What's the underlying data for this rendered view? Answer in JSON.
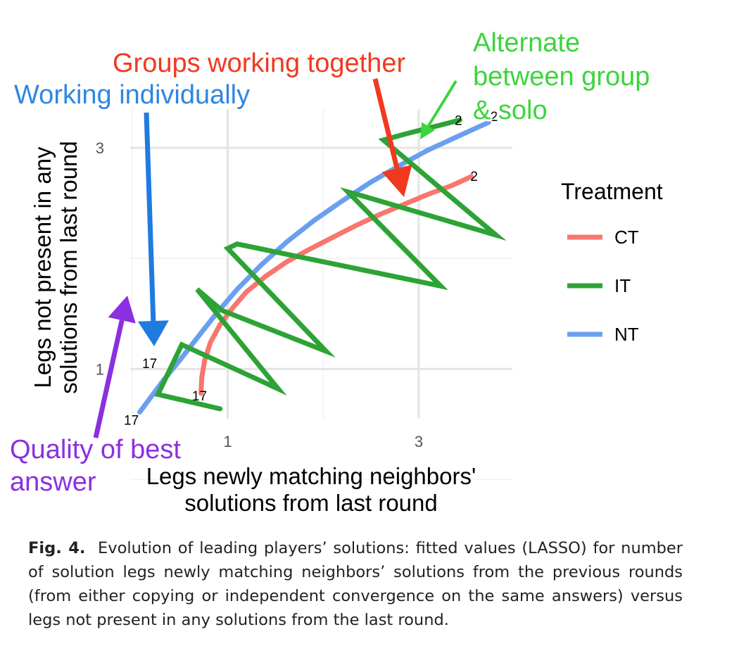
{
  "chart_data": {
    "type": "line",
    "xlabel": [
      "Legs newly matching neighbors'",
      "solutions from last round"
    ],
    "ylabel": [
      "Legs not present in any",
      "solutions from last round"
    ],
    "x_ticks": [
      {
        "value": 1,
        "label": "1"
      },
      {
        "value": 3,
        "label": "3"
      }
    ],
    "y_ticks": [
      {
        "value": 1,
        "label": "1"
      },
      {
        "value": 3,
        "label": "3"
      }
    ],
    "xlim": [
      -0.02,
      3.98
    ],
    "ylim": [
      0.55,
      3.35
    ],
    "grid": true,
    "legend": {
      "title": "Treatment",
      "position": "right",
      "entries": [
        {
          "name": "CT",
          "color": "#F8766D"
        },
        {
          "name": "IT",
          "color": "#2DA335"
        },
        {
          "name": "NT",
          "color": "#6A9FF0"
        }
      ]
    },
    "series": [
      {
        "name": "CT",
        "color": "#F8766D",
        "x": [
          0.72,
          0.73,
          0.76,
          0.82,
          0.92,
          1.05,
          1.2,
          1.4,
          1.62,
          1.85,
          2.1,
          2.35,
          2.6,
          2.85,
          3.1,
          3.35,
          3.55
        ],
        "y": [
          0.78,
          0.93,
          1.08,
          1.24,
          1.4,
          1.55,
          1.7,
          1.84,
          1.97,
          2.08,
          2.19,
          2.3,
          2.4,
          2.49,
          2.58,
          2.66,
          2.74
        ],
        "start_label": "17",
        "end_label": "2"
      },
      {
        "name": "NT",
        "color": "#6A9FF0",
        "x": [
          0.08,
          0.2,
          0.33,
          0.5,
          0.68,
          0.88,
          1.1,
          1.35,
          1.62,
          1.9,
          2.2,
          2.5,
          2.8,
          3.1,
          3.4,
          3.73
        ],
        "y": [
          0.61,
          0.75,
          0.9,
          1.08,
          1.28,
          1.5,
          1.72,
          1.94,
          2.15,
          2.34,
          2.52,
          2.69,
          2.84,
          2.98,
          3.1,
          3.23
        ],
        "start_label": "17",
        "end_label": "2"
      },
      {
        "name": "IT",
        "color": "#2DA335",
        "x": [
          0.92,
          0.27,
          0.52,
          1.53,
          0.68,
          0.94,
          2.03,
          1.0,
          1.1,
          3.23,
          2.26,
          2.43,
          3.81,
          2.63,
          2.88,
          3.43
        ],
        "y": [
          0.64,
          0.77,
          1.22,
          0.82,
          1.72,
          1.53,
          1.16,
          2.09,
          2.13,
          1.75,
          2.6,
          2.56,
          2.21,
          3.07,
          3.13,
          3.25
        ],
        "start_label": "17",
        "end_label": "2"
      }
    ],
    "annotations": [
      {
        "text": [
          "Groups working together"
        ],
        "color": "#F0391F"
      },
      {
        "text": [
          "Working individually"
        ],
        "color": "#2F86E0"
      },
      {
        "text": [
          "Alternate",
          "between group",
          "& solo"
        ],
        "color": "#3DD43D"
      },
      {
        "text": [
          "Quality of best",
          "answer"
        ],
        "color": "#8B2FE0"
      }
    ]
  },
  "caption": {
    "label": "Fig. 4.",
    "text": "Evolution of leading players’ solutions: fitted values (LASSO) for number of solution legs newly matching neighbors’ solutions from the previous rounds (from either copying or independent convergence on the same answers) versus legs not present in any solutions from the last round."
  }
}
